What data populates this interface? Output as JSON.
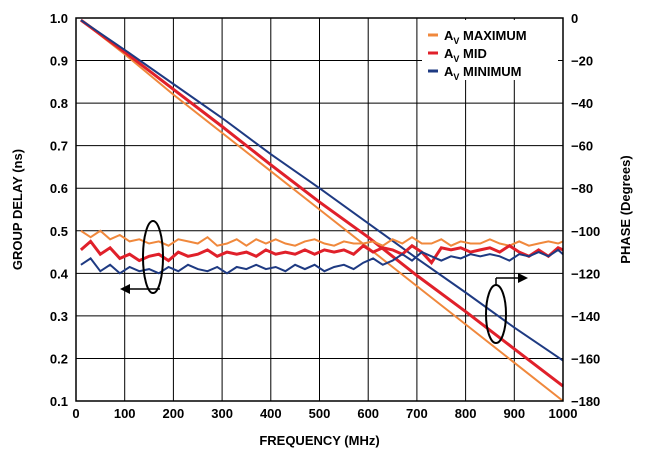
{
  "chart_data": {
    "type": "line",
    "xlabel": "FREQUENCY (MHz)",
    "ylabel_left": "GROUP DELAY (ns)",
    "ylabel_right": "PHASE (Degrees)",
    "xlim": [
      0,
      1000
    ],
    "ylim_left": [
      0.1,
      1.0
    ],
    "ylim_right": [
      -180,
      0
    ],
    "xticks": [
      0,
      100,
      200,
      300,
      400,
      500,
      600,
      700,
      800,
      900,
      1000
    ],
    "yticks_left": [
      "0.1",
      "0.2",
      "0.3",
      "0.4",
      "0.5",
      "0.6",
      "0.7",
      "0.8",
      "0.9",
      "1.0"
    ],
    "yticks_right": [
      "−180",
      "−160",
      "−140",
      "−120",
      "−100",
      "−80",
      "−60",
      "−40",
      "−20",
      "0"
    ],
    "grid": true,
    "legend_position": "top-right",
    "series": [
      {
        "name": "AV MAXIMUM",
        "label_main": "A",
        "label_sub": "V",
        "label_rest": " MAXIMUM",
        "color": "#f0883c"
      },
      {
        "name": "AV MID",
        "label_main": "A",
        "label_sub": "V",
        "label_rest": " MID",
        "color": "#e0202a"
      },
      {
        "name": "AV MINIMUM",
        "label_main": "A",
        "label_sub": "V",
        "label_rest": " MINIMUM",
        "color": "#1e3a82"
      }
    ],
    "phase": {
      "AV MAXIMUM": {
        "x": [
          10,
          100,
          200,
          300,
          400,
          500,
          600,
          700,
          800,
          900,
          1000
        ],
        "y": [
          -1,
          -17,
          -36,
          -54,
          -72,
          -90,
          -108,
          -126,
          -144,
          -162,
          -180
        ]
      },
      "AV MID": {
        "x": [
          10,
          100,
          200,
          300,
          400,
          500,
          600,
          700,
          800,
          900,
          1000
        ],
        "y": [
          -1,
          -16,
          -33.5,
          -51,
          -69,
          -86.5,
          -103,
          -121,
          -138,
          -155.5,
          -173
        ]
      },
      "AV MINIMUM": {
        "x": [
          10,
          100,
          200,
          300,
          400,
          500,
          600,
          700,
          800,
          900,
          1000
        ],
        "y": [
          -1,
          -15,
          -31,
          -47,
          -64,
          -80,
          -96.5,
          -113,
          -129,
          -145.5,
          -161
        ]
      }
    },
    "group_delay": {
      "AV MAXIMUM": {
        "x": [
          10,
          30,
          50,
          70,
          90,
          110,
          130,
          150,
          170,
          190,
          210,
          230,
          250,
          270,
          290,
          310,
          330,
          350,
          370,
          390,
          410,
          430,
          450,
          470,
          490,
          510,
          530,
          550,
          570,
          590,
          610,
          630,
          650,
          670,
          690,
          710,
          730,
          750,
          770,
          790,
          810,
          830,
          850,
          870,
          890,
          910,
          930,
          950,
          970,
          990,
          1000
        ],
        "y": [
          0.5,
          0.485,
          0.5,
          0.48,
          0.49,
          0.475,
          0.48,
          0.47,
          0.475,
          0.465,
          0.48,
          0.475,
          0.47,
          0.485,
          0.465,
          0.47,
          0.48,
          0.465,
          0.48,
          0.47,
          0.48,
          0.47,
          0.465,
          0.475,
          0.48,
          0.47,
          0.465,
          0.475,
          0.47,
          0.47,
          0.475,
          0.465,
          0.48,
          0.47,
          0.485,
          0.47,
          0.47,
          0.48,
          0.465,
          0.475,
          0.47,
          0.47,
          0.48,
          0.47,
          0.465,
          0.475,
          0.465,
          0.47,
          0.475,
          0.47,
          0.475
        ]
      },
      "AV MID": {
        "x": [
          10,
          30,
          50,
          70,
          90,
          110,
          130,
          150,
          170,
          190,
          210,
          230,
          250,
          270,
          290,
          310,
          330,
          350,
          370,
          390,
          410,
          430,
          450,
          470,
          490,
          510,
          530,
          550,
          570,
          590,
          610,
          630,
          650,
          670,
          690,
          710,
          730,
          750,
          770,
          790,
          810,
          830,
          850,
          870,
          890,
          910,
          930,
          950,
          970,
          990,
          1000
        ],
        "y": [
          0.455,
          0.475,
          0.445,
          0.46,
          0.435,
          0.445,
          0.43,
          0.44,
          0.445,
          0.43,
          0.45,
          0.44,
          0.445,
          0.455,
          0.44,
          0.45,
          0.445,
          0.45,
          0.44,
          0.455,
          0.445,
          0.45,
          0.445,
          0.455,
          0.445,
          0.455,
          0.45,
          0.455,
          0.445,
          0.465,
          0.45,
          0.46,
          0.455,
          0.445,
          0.465,
          0.45,
          0.425,
          0.46,
          0.455,
          0.46,
          0.45,
          0.455,
          0.46,
          0.45,
          0.465,
          0.45,
          0.44,
          0.455,
          0.44,
          0.46,
          0.455
        ]
      },
      "AV MINIMUM": {
        "x": [
          10,
          30,
          50,
          70,
          90,
          110,
          130,
          150,
          170,
          190,
          210,
          230,
          250,
          270,
          290,
          310,
          330,
          350,
          370,
          390,
          410,
          430,
          450,
          470,
          490,
          510,
          530,
          550,
          570,
          590,
          610,
          630,
          650,
          670,
          690,
          710,
          730,
          750,
          770,
          790,
          810,
          830,
          850,
          870,
          890,
          910,
          930,
          950,
          970,
          990,
          1000
        ],
        "y": [
          0.42,
          0.435,
          0.405,
          0.42,
          0.4,
          0.415,
          0.405,
          0.41,
          0.4,
          0.415,
          0.405,
          0.42,
          0.41,
          0.405,
          0.415,
          0.4,
          0.415,
          0.41,
          0.42,
          0.41,
          0.415,
          0.405,
          0.42,
          0.41,
          0.42,
          0.405,
          0.415,
          0.42,
          0.41,
          0.425,
          0.435,
          0.42,
          0.43,
          0.445,
          0.43,
          0.45,
          0.44,
          0.43,
          0.44,
          0.435,
          0.445,
          0.44,
          0.445,
          0.44,
          0.43,
          0.445,
          0.44,
          0.45,
          0.44,
          0.455,
          0.445
        ]
      }
    }
  }
}
